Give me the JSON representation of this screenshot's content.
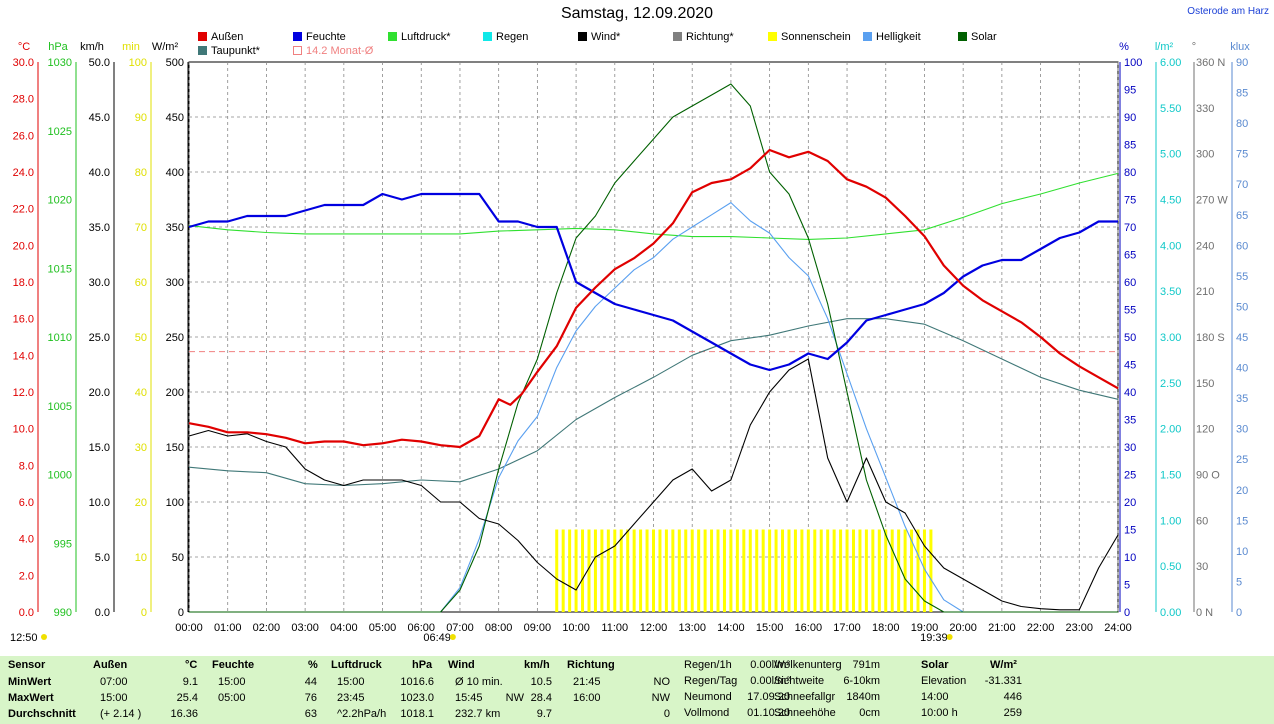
{
  "title": "Samstag, 12.09.2020",
  "location": "Osterode am Harz",
  "legend": [
    {
      "label": "Außen",
      "color": "#e00000"
    },
    {
      "label": "Feuchte",
      "color": "#0000e0"
    },
    {
      "label": "Luftdruck*",
      "color": "#30e030"
    },
    {
      "label": "Regen",
      "color": "#10e8e8"
    },
    {
      "label": "Wind*",
      "color": "#000000"
    },
    {
      "label": "Richtung*",
      "color": "#808080"
    },
    {
      "label": "Sonnenschein",
      "color": "#ffff00"
    },
    {
      "label": "Helligkeit",
      "color": "#5aa0f0"
    },
    {
      "label": "Solar",
      "color": "#006000"
    },
    {
      "label": "Taupunkt*",
      "color": "#407878"
    },
    {
      "label": "14.2 Monat-Ø",
      "color": "#f08080"
    }
  ],
  "axes": {
    "units_left": [
      "°C",
      "hPa",
      "km/h",
      "min",
      "W/m²"
    ],
    "units_right": [
      "%",
      "l/m²",
      "°",
      "klux"
    ],
    "temp_ticks": [
      "30.0",
      "28.0",
      "26.0",
      "24.0",
      "22.0",
      "20.0",
      "18.0",
      "16.0",
      "14.0",
      "12.0",
      "10.0",
      "8.0",
      "6.0",
      "4.0",
      "2.0",
      "0.0"
    ],
    "hpa_ticks": [
      "1030",
      "1025",
      "1020",
      "1015",
      "1010",
      "1005",
      "1000",
      "995",
      "990"
    ],
    "kmh_ticks": [
      "50.0",
      "45.0",
      "40.0",
      "35.0",
      "30.0",
      "25.0",
      "20.0",
      "15.0",
      "10.0",
      "5.0",
      "0.0"
    ],
    "min_ticks": [
      "100",
      "90",
      "80",
      "70",
      "60",
      "50",
      "40",
      "30",
      "20",
      "10",
      "0"
    ],
    "wm2_ticks": [
      "500",
      "450",
      "400",
      "350",
      "300",
      "250",
      "200",
      "150",
      "100",
      "50",
      "0"
    ],
    "pct_ticks": [
      "100",
      "95",
      "90",
      "85",
      "80",
      "75",
      "70",
      "65",
      "60",
      "55",
      "50",
      "45",
      "40",
      "35",
      "30",
      "25",
      "20",
      "15",
      "10",
      "5",
      "0"
    ],
    "rain_ticks": [
      "6.00",
      "5.50",
      "5.00",
      "4.50",
      "4.00",
      "3.50",
      "3.00",
      "2.50",
      "2.00",
      "1.50",
      "1.00",
      "0.50",
      "0.00"
    ],
    "dir_ticks": [
      "360 N",
      "330",
      "300",
      "270 W",
      "240",
      "210",
      "180 S",
      "150",
      "120",
      "90 O",
      "60",
      "30",
      "0 N"
    ],
    "klux_ticks": [
      "90",
      "85",
      "80",
      "75",
      "70",
      "65",
      "60",
      "55",
      "50",
      "45",
      "40",
      "35",
      "30",
      "25",
      "20",
      "15",
      "10",
      "5",
      "0"
    ],
    "x_ticks": [
      "00:00",
      "01:00",
      "02:00",
      "03:00",
      "04:00",
      "05:00",
      "06:00",
      "07:00",
      "08:00",
      "09:00",
      "10:00",
      "11:00",
      "12:00",
      "13:00",
      "14:00",
      "15:00",
      "16:00",
      "17:00",
      "18:00",
      "19:00",
      "20:00",
      "21:00",
      "22:00",
      "23:00",
      "24:00"
    ],
    "sunrise": "06:49",
    "sunset": "19:39",
    "current_time": "12:50"
  },
  "chart_data": {
    "type": "line",
    "x_unit": "hour of day",
    "xlim": [
      0,
      24
    ],
    "monthly_avg_temp": 14.2,
    "series": [
      {
        "name": "Außen",
        "unit": "°C",
        "color": "#e00000",
        "x": [
          0,
          0.5,
          1,
          1.5,
          2,
          2.5,
          3,
          3.5,
          4,
          4.5,
          5,
          5.5,
          6,
          6.5,
          7,
          7.5,
          8,
          8.3,
          8.6,
          9,
          9.5,
          10,
          10.5,
          11,
          11.5,
          12,
          12.5,
          13,
          13.5,
          14,
          14.5,
          15,
          15.5,
          16,
          16.5,
          17,
          17.5,
          18,
          18.5,
          19,
          19.5,
          20,
          20.5,
          21,
          21.5,
          22,
          22.5,
          23,
          23.5,
          24
        ],
        "y": [
          10.3,
          10.1,
          9.8,
          9.8,
          9.7,
          9.5,
          9.2,
          9.3,
          9.3,
          9.1,
          9.2,
          9.4,
          9.3,
          9.1,
          9.0,
          9.6,
          11.6,
          11.3,
          11.9,
          13.1,
          14.5,
          16.6,
          17.7,
          18.7,
          19.3,
          20.1,
          21.2,
          22.9,
          23.4,
          23.6,
          24.2,
          25.2,
          24.8,
          25.1,
          24.6,
          23.6,
          23.2,
          22.6,
          21.6,
          20.5,
          18.9,
          17.8,
          17.0,
          16.4,
          15.8,
          15.0,
          14.1,
          13.4,
          12.8,
          12.2
        ]
      },
      {
        "name": "Feuchte",
        "unit": "%",
        "color": "#0000e0",
        "x": [
          0,
          0.5,
          1,
          1.5,
          2,
          2.5,
          3,
          3.5,
          4,
          4.5,
          5,
          5.5,
          6,
          6.5,
          7,
          7.5,
          8,
          8.5,
          9,
          9.5,
          10,
          10.5,
          11,
          11.5,
          12,
          12.5,
          13,
          13.5,
          14,
          14.5,
          15,
          15.5,
          16,
          16.5,
          17,
          17.5,
          18,
          18.5,
          19,
          19.5,
          20,
          20.5,
          21,
          21.5,
          22,
          22.5,
          23,
          23.5,
          24
        ],
        "y": [
          70,
          71,
          71,
          72,
          72,
          72,
          73,
          74,
          74,
          74,
          76,
          75,
          76,
          76,
          76,
          76,
          71,
          71,
          70,
          70,
          60,
          58,
          56,
          55,
          54,
          53,
          51,
          49,
          47,
          45,
          44,
          45,
          47,
          46,
          49,
          53,
          54,
          55,
          56,
          58,
          61,
          63,
          64,
          64,
          66,
          68,
          69,
          71,
          71
        ]
      },
      {
        "name": "Luftdruck*",
        "unit": "hPa",
        "color": "#30e030",
        "x": [
          0,
          1,
          2,
          3,
          4,
          5,
          6,
          7,
          8,
          9,
          10,
          11,
          12,
          13,
          14,
          15,
          16,
          17,
          18,
          19,
          20,
          21,
          22,
          23,
          24
        ],
        "y": [
          1018.1,
          1017.8,
          1017.6,
          1017.5,
          1017.5,
          1017.5,
          1017.5,
          1017.5,
          1017.7,
          1017.8,
          1017.9,
          1017.8,
          1017.5,
          1017.3,
          1017.3,
          1017.2,
          1017.1,
          1017.2,
          1017.5,
          1017.8,
          1018.7,
          1019.7,
          1020.4,
          1021.2,
          1021.9
        ]
      },
      {
        "name": "Wind*",
        "unit": "km/h",
        "color": "#000000",
        "x": [
          0,
          0.5,
          1,
          1.5,
          2,
          2.5,
          3,
          3.5,
          4,
          4.5,
          5,
          5.5,
          6,
          6.5,
          7,
          7.5,
          8,
          8.5,
          9,
          9.5,
          10,
          10.5,
          11,
          11.5,
          12,
          12.5,
          13,
          13.5,
          14,
          14.5,
          15,
          15.5,
          16,
          16.5,
          17,
          17.5,
          18,
          18.5,
          19,
          19.5,
          20,
          20.5,
          21,
          21.5,
          22,
          22.5,
          23,
          23.5,
          24
        ],
        "y": [
          16,
          16.5,
          16,
          16.2,
          15.5,
          15,
          13,
          12,
          11.5,
          12,
          12,
          12,
          11.5,
          10,
          10,
          8.5,
          8,
          6.5,
          4.5,
          3,
          2,
          5,
          6,
          8,
          10,
          12,
          13,
          11,
          12,
          17,
          20,
          22,
          23,
          14,
          10,
          14,
          10,
          9,
          6,
          4,
          3,
          2,
          1,
          0.5,
          0.3,
          0.2,
          0.2,
          4,
          7
        ]
      },
      {
        "name": "Taupunkt*",
        "unit": "°C",
        "color": "#407878",
        "x": [
          0,
          1,
          2,
          3,
          4,
          5,
          6,
          7,
          8,
          9,
          10,
          11,
          12,
          13,
          14,
          15,
          16,
          17,
          18,
          19,
          20,
          21,
          22,
          23,
          24
        ],
        "y": [
          7.9,
          7.7,
          7.6,
          7.0,
          6.9,
          7.0,
          7.2,
          7.1,
          7.8,
          8.8,
          10.5,
          11.7,
          12.8,
          14.0,
          14.8,
          15.1,
          15.6,
          16.0,
          16.0,
          15.7,
          14.8,
          13.8,
          12.8,
          12.1,
          11.6
        ]
      },
      {
        "name": "Solar",
        "unit": "W/m²",
        "color": "#006000",
        "x": [
          0,
          6.5,
          7,
          7.5,
          8,
          8.5,
          9,
          9.5,
          10,
          10.5,
          11,
          11.5,
          12,
          12.5,
          13,
          13.5,
          14,
          14.5,
          15,
          15.5,
          16,
          16.5,
          17,
          17.5,
          18,
          18.5,
          19,
          19.5,
          20,
          24
        ],
        "y": [
          0,
          0,
          20,
          60,
          130,
          190,
          230,
          290,
          340,
          360,
          390,
          410,
          430,
          450,
          460,
          470,
          480,
          460,
          400,
          380,
          340,
          280,
          200,
          120,
          70,
          30,
          10,
          0,
          0,
          0
        ]
      },
      {
        "name": "Helligkeit",
        "unit": "klux",
        "color": "#5aa0f0",
        "x": [
          0,
          6.5,
          7,
          7.5,
          8,
          8.5,
          9,
          9.5,
          10,
          10.5,
          11,
          11.5,
          12,
          12.5,
          13,
          13.5,
          14,
          14.5,
          15,
          15.5,
          16,
          16.5,
          17,
          17.5,
          18,
          18.5,
          19,
          19.5,
          20,
          24
        ],
        "y": [
          0,
          0,
          4,
          12,
          22,
          28,
          32,
          40,
          46,
          50,
          53,
          56,
          58,
          61,
          63,
          65,
          67,
          64,
          62,
          58,
          55,
          48,
          39,
          30,
          22,
          14,
          7,
          2,
          0,
          0
        ]
      },
      {
        "name": "Sonnenschein",
        "unit": "min",
        "color": "#ffff00",
        "x": [
          9.5,
          19.3
        ],
        "y": [
          15,
          15
        ]
      }
    ]
  },
  "footer": {
    "headers": [
      {
        "label": "Sensor",
        "unit": ""
      },
      {
        "label": "Außen",
        "unit": "°C"
      },
      {
        "label": "Feuchte",
        "unit": "%"
      },
      {
        "label": "Luftdruck",
        "unit": "hPa"
      },
      {
        "label": "Wind",
        "unit": "km/h"
      },
      {
        "label": "Richtung",
        "unit": ""
      }
    ],
    "rows": [
      {
        "label": "MinWert",
        "aussen_time": "07:00",
        "aussen_val": "9.1",
        "feuchte_time": "15:00",
        "feuchte_val": "44",
        "druck_time": "15:00",
        "druck_val": "1016.6",
        "wind_label": "Ø 10 min.",
        "wind_dir": "",
        "wind_val": "10.5",
        "richtung_time": "21:45",
        "richtung_val": "NO"
      },
      {
        "label": "MaxWert",
        "aussen_time": "15:00",
        "aussen_val": "25.4",
        "feuchte_time": "05:00",
        "feuchte_val": "76",
        "druck_time": "23:45",
        "druck_val": "1023.0",
        "wind_label": "15:45",
        "wind_dir": "NW",
        "wind_val": "28.4",
        "richtung_time": "16:00",
        "richtung_val": "NW"
      },
      {
        "label": "Durchschnitt",
        "aussen_time": "(+ 2.14 )",
        "aussen_val": "16.36",
        "feuchte_time": "",
        "feuchte_val": "63",
        "druck_time": "^2.2hPa/h",
        "druck_val": "1018.1",
        "wind_label": "232.7 km",
        "wind_dir": "",
        "wind_val": "9.7",
        "richtung_time": "",
        "richtung_val": "0"
      }
    ],
    "extra": [
      [
        {
          "label": "Regen/1h",
          "value": "0.00l/m²"
        },
        {
          "label": "Regen/Tag",
          "value": "0.00l/m²"
        },
        {
          "label": "Neumond",
          "value": "17.09.20"
        },
        {
          "label": "Vollmond",
          "value": "01.10.20"
        }
      ],
      [
        {
          "label": "Wolkenunterg",
          "value": "791m"
        },
        {
          "label": "Sichtweite",
          "value": "6-10km"
        },
        {
          "label": "Schneefallgr",
          "value": "1840m"
        },
        {
          "label": "Schneehöhe",
          "value": "0cm"
        }
      ]
    ],
    "solar": {
      "header": "Solar",
      "unit": "W/m²",
      "rows": [
        {
          "label": "",
          "value": ""
        },
        {
          "label": "Elevation",
          "value": "-31.331"
        },
        {
          "label": "14:00",
          "value": "446"
        },
        {
          "label": "10:00 h",
          "value": "259"
        }
      ]
    }
  }
}
